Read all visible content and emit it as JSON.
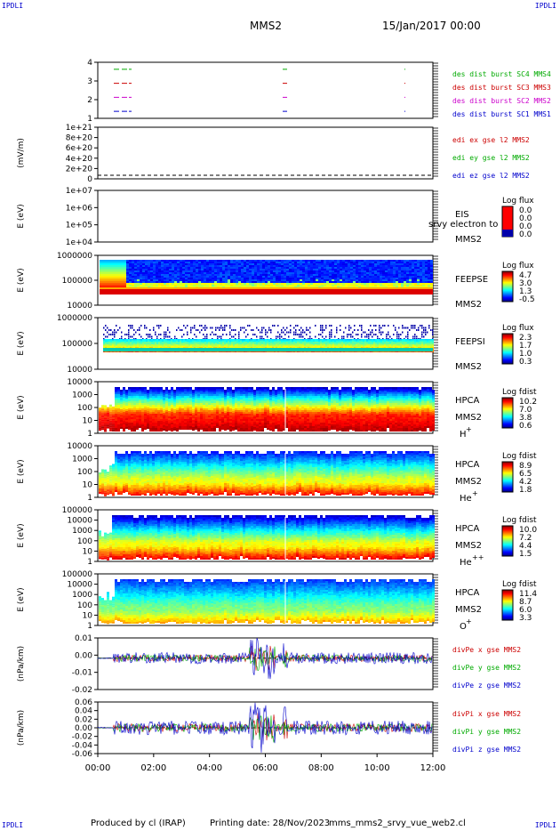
{
  "corners": {
    "tl": "IPDLI",
    "tr": "IPDLI",
    "bl": "IPDLI",
    "br": "IPDLI"
  },
  "header": {
    "spacecraft": "MMS2",
    "date": "15/Jan/2017 00:00"
  },
  "footer": {
    "produced": "Produced by cl (IRAP)",
    "printing": "Printing date: 28/Nov/2023",
    "file": "mms_mms2_srvy_vue_web2.cl"
  },
  "x_axis": {
    "ticks": [
      "00:00",
      "02:00",
      "04:00",
      "06:00",
      "08:00",
      "10:00",
      "12:00"
    ]
  },
  "chart_data": [
    {
      "type": "line",
      "name": "burst",
      "yticks": [
        "1",
        "2",
        "3",
        "4"
      ],
      "ylim": [
        0.5,
        4.5
      ],
      "series": [
        {
          "name": "des dist burst SC1 MMS1",
          "color": "#0000cc",
          "y": 1
        },
        {
          "name": "des dist burst SC2 MMS2",
          "color": "#cc00cc",
          "y": 2
        },
        {
          "name": "des dist burst SC3 MMS3",
          "color": "#cc0000",
          "y": 3
        },
        {
          "name": "des dist burst SC4 MMS4",
          "color": "#00aa00",
          "y": 4
        }
      ]
    },
    {
      "type": "line",
      "name": "edi",
      "ylabel": "(mV/m)",
      "yticks": [
        "0",
        "2e+20",
        "4e+20",
        "6e+20",
        "8e+20",
        "1e+21"
      ],
      "legend": [
        {
          "name": "edi ex gse l2 MMS2",
          "color": "#cc0000"
        },
        {
          "name": "edi ey gse l2 MMS2",
          "color": "#00aa00"
        },
        {
          "name": "edi ez gse l2 MMS2",
          "color": "#0000cc"
        }
      ]
    },
    {
      "type": "heatmap",
      "name": "eis",
      "ylabel": "E (eV)",
      "yticks": [
        "1e+07",
        "1e+06",
        "1e+05",
        "1e+04"
      ],
      "instrument": "EIS",
      "sc": "MMS2",
      "overlay": "srvy electron to",
      "cbar_title": "Log flux",
      "cbar": [
        "0.0",
        "0.0",
        "0.0",
        "0.0"
      ]
    },
    {
      "type": "heatmap",
      "name": "feepse",
      "ylabel": "E (eV)",
      "yticks": [
        "1000000",
        "100000",
        "10000"
      ],
      "instrument": "FEEPSE",
      "sc": "MMS2",
      "cbar_title": "Log flux",
      "cbar": [
        "4.7",
        "3.0",
        "1.3",
        "-0.5"
      ]
    },
    {
      "type": "heatmap",
      "name": "feepsi",
      "ylabel": "E (eV)",
      "yticks": [
        "1000000",
        "100000",
        "10000"
      ],
      "instrument": "FEEPSI",
      "sc": "MMS2",
      "cbar_title": "Log flux",
      "cbar": [
        "2.3",
        "1.7",
        "1.0",
        "0.3"
      ]
    },
    {
      "type": "heatmap",
      "name": "hpca-h",
      "ylabel": "E (eV)",
      "yticks": [
        "10000",
        "1000",
        "100",
        "10",
        "1"
      ],
      "instrument": "HPCA",
      "sc": "MMS2",
      "species": "H",
      "charge": "+",
      "cbar_title": "Log fdist",
      "cbar": [
        "10.2",
        "7.0",
        "3.8",
        "0.6"
      ]
    },
    {
      "type": "heatmap",
      "name": "hpca-he",
      "ylabel": "E (eV)",
      "yticks": [
        "10000",
        "1000",
        "100",
        "10",
        "1"
      ],
      "instrument": "HPCA",
      "sc": "MMS2",
      "species": "He",
      "charge": "+",
      "cbar_title": "Log fdist",
      "cbar": [
        "8.9",
        "6.5",
        "4.2",
        "1.8"
      ]
    },
    {
      "type": "heatmap",
      "name": "hpca-hepp",
      "ylabel": "E (eV)",
      "yticks": [
        "100000",
        "10000",
        "1000",
        "100",
        "10",
        "1"
      ],
      "instrument": "HPCA",
      "sc": "MMS2",
      "species": "He",
      "charge": "++",
      "cbar_title": "Log fdist",
      "cbar": [
        "10.0",
        "7.2",
        "4.4",
        "1.5"
      ]
    },
    {
      "type": "heatmap",
      "name": "hpca-o",
      "ylabel": "E (eV)",
      "yticks": [
        "100000",
        "10000",
        "1000",
        "100",
        "10",
        "1"
      ],
      "instrument": "HPCA",
      "sc": "MMS2",
      "species": "O",
      "charge": "+",
      "cbar_title": "Log fdist",
      "cbar": [
        "11.4",
        "8.7",
        "6.0",
        "3.3"
      ]
    },
    {
      "type": "line",
      "name": "divpe",
      "ylabel": "(nPa/km)",
      "yticks": [
        "0.01",
        "0.00",
        "-0.01",
        "-0.02"
      ],
      "ylim": [
        -0.0225,
        0.0145
      ],
      "legend": [
        {
          "name": "divPe x gse MMS2",
          "color": "#cc0000"
        },
        {
          "name": "divPe y gse MMS2",
          "color": "#00aa00"
        },
        {
          "name": "divPe z gse MMS2",
          "color": "#0000cc"
        }
      ]
    },
    {
      "type": "line",
      "name": "divpi",
      "ylabel": "(nPa/km)",
      "yticks": [
        "0.06",
        "0.04",
        "0.02",
        "0.00",
        "-0.02",
        "-0.04",
        "-0.06"
      ],
      "ylim": [
        -0.07,
        0.07
      ],
      "legend": [
        {
          "name": "divPi x gse MMS2",
          "color": "#cc0000"
        },
        {
          "name": "divPi y gse MMS2",
          "color": "#00aa00"
        },
        {
          "name": "divPi z gse MMS2",
          "color": "#0000cc"
        }
      ]
    }
  ]
}
